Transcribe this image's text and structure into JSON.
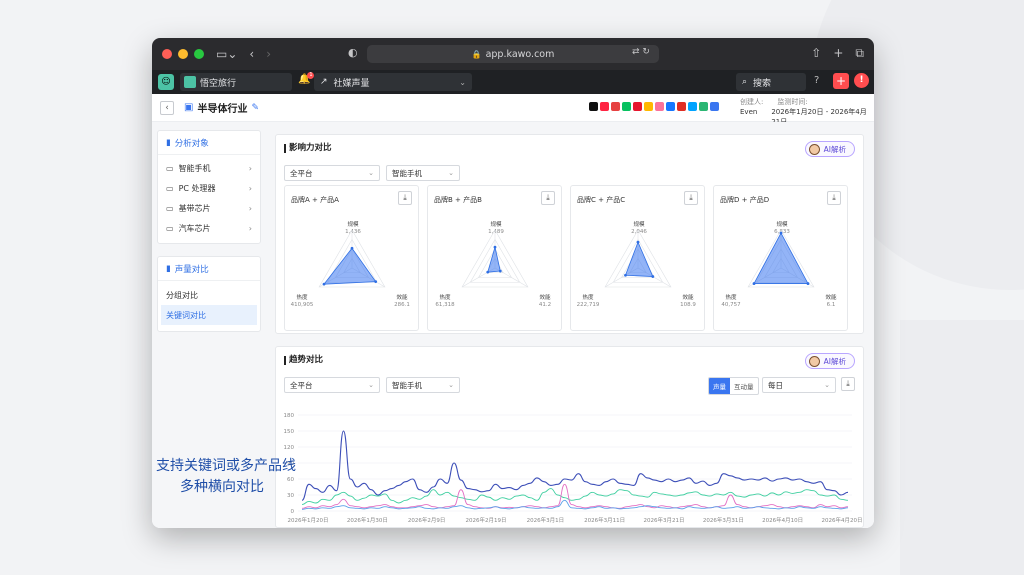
{
  "browser": {
    "url": "app.kawo.com"
  },
  "appbar": {
    "workspace": "悟空旅行",
    "notification_count": "1",
    "module": "社媒声量",
    "search_label": "搜索"
  },
  "page": {
    "title": "半导体行业",
    "creator_label": "创建人:",
    "creator": "Even",
    "period_label": "监测时间:",
    "period": "2026年1月20日 - 2026年4月21日"
  },
  "platforms": [
    "#111111",
    "#ff2442",
    "#e64141",
    "#07c160",
    "#e6162d",
    "#ffb800",
    "#fb7299",
    "#1677ff",
    "#e02e24",
    "#00a3ff",
    "#2bb673",
    "#3a76f0"
  ],
  "sidebar": {
    "analysis_title": "分析对象",
    "analysis_items": [
      "智能手机",
      "PC 处理器",
      "基带芯片",
      "汽车芯片"
    ],
    "compare_title": "声量对比",
    "compare_items": [
      "分组对比",
      "关键词对比"
    ]
  },
  "influence": {
    "title": "影响力对比",
    "ai_label": "AI解析",
    "filter_platform": "全平台",
    "filter_category": "智能手机",
    "axis_labels": {
      "scale": "规模",
      "heat": "热度",
      "efficiency": "效能"
    },
    "cards": [
      {
        "name": "品牌A + 产品A",
        "scale": "1,436",
        "heat": "410,905",
        "efficiency": "286.1",
        "r": [
          0.52,
          0.85,
          0.72
        ]
      },
      {
        "name": "品牌B + 产品B",
        "scale": "1,489",
        "heat": "61,318",
        "efficiency": "41.2",
        "r": [
          0.55,
          0.22,
          0.16
        ]
      },
      {
        "name": "品牌C + 产品C",
        "scale": "2,046",
        "heat": "222,719",
        "efficiency": "108.9",
        "r": [
          0.68,
          0.38,
          0.45
        ]
      },
      {
        "name": "品牌D + 产品D",
        "scale": "6,833",
        "heat": "40,757",
        "efficiency": "6.1",
        "r": [
          0.92,
          0.82,
          0.82
        ]
      }
    ]
  },
  "trend": {
    "title": "趋势对比",
    "ai_label": "AI解析",
    "filter_platform": "全平台",
    "filter_category": "智能手机",
    "toggle_on": "声量",
    "toggle_off": "互动量",
    "granularity": "每日",
    "chart_data": {
      "type": "line",
      "ylim": [
        0,
        180
      ],
      "yticks": [
        0,
        30,
        60,
        90,
        120,
        150,
        180
      ],
      "xticks": [
        "2026年1月20日",
        "2026年1月30日",
        "2026年2月9日",
        "2026年2月19日",
        "2026年3月1日",
        "2026年3月11日",
        "2026年3月21日",
        "2026年3月31日",
        "2026年4月10日",
        "2026年4月20日"
      ],
      "series": [
        {
          "color": "#3d4fb8",
          "values": [
            20,
            50,
            42,
            35,
            48,
            38,
            150,
            60,
            45,
            52,
            40,
            30,
            38,
            42,
            48,
            55,
            60,
            40,
            35,
            45,
            60,
            52,
            90,
            58,
            42,
            40,
            36,
            38,
            50,
            42,
            44,
            40,
            48,
            52,
            62,
            55,
            48,
            50,
            60,
            58,
            70,
            55,
            50,
            48,
            55,
            60,
            52,
            50,
            48,
            70,
            62,
            58,
            55,
            60,
            55,
            58,
            62,
            52,
            56,
            48,
            52,
            70,
            66,
            62,
            58,
            60,
            58,
            62,
            56,
            60,
            62,
            58,
            60,
            55,
            52,
            55,
            40,
            38,
            30,
            35
          ]
        },
        {
          "color": "#3fcfa0",
          "values": [
            12,
            18,
            15,
            22,
            20,
            30,
            35,
            28,
            20,
            24,
            30,
            28,
            32,
            20,
            15,
            20,
            25,
            22,
            28,
            40,
            30,
            35,
            28,
            25,
            22,
            20,
            30,
            26,
            20,
            25,
            22,
            28,
            30,
            25,
            20,
            35,
            42,
            30,
            25,
            20,
            22,
            28,
            35,
            30,
            28,
            32,
            40,
            38,
            30,
            28,
            26,
            35,
            32,
            30,
            28,
            30,
            34,
            36,
            30,
            28,
            32,
            30,
            35,
            28,
            26,
            30,
            32,
            28,
            34,
            30,
            36,
            33,
            35,
            40,
            38,
            30,
            28,
            30,
            22,
            20
          ]
        },
        {
          "color": "#e36fc4",
          "values": [
            5,
            8,
            6,
            10,
            8,
            12,
            22,
            10,
            8,
            6,
            8,
            10,
            12,
            8,
            6,
            6,
            8,
            10,
            12,
            8,
            6,
            8,
            10,
            40,
            12,
            8,
            6,
            5,
            8,
            6,
            7,
            6,
            8,
            10,
            8,
            6,
            8,
            10,
            50,
            12,
            8,
            6,
            8,
            10,
            8,
            6,
            5,
            8,
            10,
            12,
            8,
            6,
            10,
            8,
            6,
            8,
            10,
            12,
            8,
            6,
            8,
            10,
            30,
            12,
            8,
            6,
            8,
            10,
            12,
            8,
            6,
            8,
            10,
            8,
            6,
            12,
            8,
            10,
            6,
            8
          ]
        },
        {
          "color": "#5aa0e8",
          "values": [
            3,
            5,
            4,
            6,
            5,
            8,
            10,
            6,
            5,
            4,
            6,
            5,
            8,
            6,
            4,
            5,
            6,
            8,
            5,
            4,
            6,
            5,
            8,
            10,
            6,
            4,
            5,
            6,
            8,
            5,
            4,
            6,
            8,
            6,
            5,
            6,
            5,
            8,
            20,
            6,
            5,
            4,
            6,
            8,
            5,
            6,
            4,
            5,
            6,
            8,
            10,
            8,
            6,
            5,
            6,
            4,
            8,
            6,
            5,
            6,
            8,
            5,
            6,
            8,
            5,
            6,
            8,
            6,
            5,
            4,
            6,
            5,
            8,
            6,
            5,
            8,
            6,
            5,
            4,
            6
          ]
        }
      ]
    }
  },
  "annotation": {
    "line1": "支持关键词或多产品线",
    "line2": "多种横向对比"
  }
}
